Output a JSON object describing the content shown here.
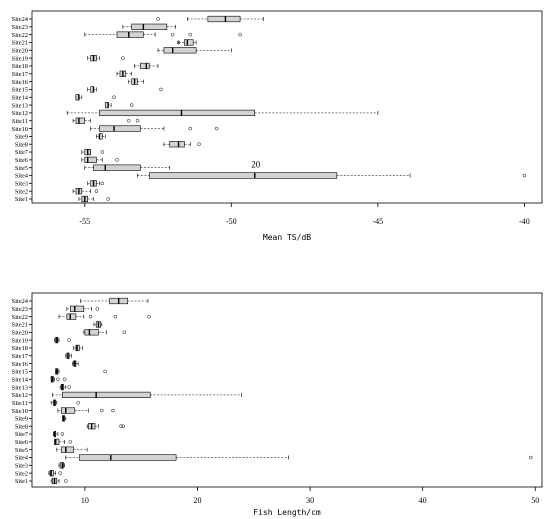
{
  "chart_data": [
    {
      "type": "boxplot",
      "orientation": "horizontal",
      "xlabel": "Mean TS/dB",
      "xlim": [
        -56.8,
        -39.4
      ],
      "xticks": [
        -55,
        -50,
        -45,
        -40
      ],
      "annotation": {
        "text": "20",
        "x": -49.2,
        "y": "Site4"
      },
      "sites": [
        "Site1",
        "Site2",
        "Site3",
        "Site4",
        "Site5",
        "Site6",
        "Site7",
        "Site8",
        "Site9",
        "Site10",
        "Site11",
        "Site12",
        "Site13",
        "Site14",
        "Site15",
        "Site16",
        "Site17",
        "Site18",
        "Site19",
        "Site20",
        "Site21",
        "Site22",
        "Site23",
        "Site24"
      ],
      "boxes": [
        {
          "min": -55.2,
          "q1": -55.1,
          "median": -55.0,
          "q3": -54.9,
          "max": -54.7,
          "outliers": [
            -54.2
          ]
        },
        {
          "min": -55.4,
          "q1": -55.3,
          "median": -55.2,
          "q3": -55.1,
          "max": -54.8,
          "outliers": [
            -54.6
          ]
        },
        {
          "min": -54.9,
          "q1": -54.8,
          "median": -54.7,
          "q3": -54.6,
          "max": -54.5,
          "outliers": [
            -54.4
          ]
        },
        {
          "min": -53.2,
          "q1": -52.8,
          "median": -49.2,
          "q3": -46.4,
          "max": -43.9,
          "outliers": [
            -40.0
          ]
        },
        {
          "min": -55.0,
          "q1": -54.7,
          "median": -54.3,
          "q3": -53.1,
          "max": -52.1,
          "outliers": []
        },
        {
          "min": -55.1,
          "q1": -55.0,
          "median": -54.9,
          "q3": -54.6,
          "max": -54.4,
          "outliers": [
            -53.9
          ]
        },
        {
          "min": -55.1,
          "q1": -55.0,
          "median": -54.9,
          "q3": -54.8,
          "max": -54.8,
          "outliers": [
            -54.4
          ]
        },
        {
          "min": -52.3,
          "q1": -52.1,
          "median": -51.8,
          "q3": -51.6,
          "max": -51.4,
          "outliers": [
            -51.1
          ]
        },
        {
          "min": -54.6,
          "q1": -54.5,
          "median": -54.5,
          "q3": -54.4,
          "max": -54.3,
          "outliers": []
        },
        {
          "min": -54.8,
          "q1": -54.5,
          "median": -54.0,
          "q3": -53.1,
          "max": -52.3,
          "outliers": [
            -51.4,
            -50.5
          ]
        },
        {
          "min": -55.4,
          "q1": -55.3,
          "median": -55.2,
          "q3": -55.0,
          "max": -54.8,
          "outliers": [
            -53.5,
            -53.2
          ]
        },
        {
          "min": -55.6,
          "q1": -54.5,
          "median": -51.7,
          "q3": -49.2,
          "max": -45.0,
          "outliers": []
        },
        {
          "min": -54.3,
          "q1": -54.3,
          "median": -54.2,
          "q3": -54.2,
          "max": -54.1,
          "outliers": [
            -53.4
          ]
        },
        {
          "min": -55.3,
          "q1": -55.3,
          "median": -55.2,
          "q3": -55.2,
          "max": -55.1,
          "outliers": [
            -54.0
          ]
        },
        {
          "min": -54.9,
          "q1": -54.8,
          "median": -54.7,
          "q3": -54.7,
          "max": -54.6,
          "outliers": [
            -52.4
          ]
        },
        {
          "min": -53.5,
          "q1": -53.4,
          "median": -53.3,
          "q3": -53.2,
          "max": -53.0,
          "outliers": []
        },
        {
          "min": -53.9,
          "q1": -53.8,
          "median": -53.7,
          "q3": -53.6,
          "max": -53.4,
          "outliers": []
        },
        {
          "min": -53.3,
          "q1": -53.1,
          "median": -52.9,
          "q3": -52.8,
          "max": -52.5,
          "outliers": []
        },
        {
          "min": -54.9,
          "q1": -54.8,
          "median": -54.7,
          "q3": -54.6,
          "max": -54.5,
          "outliers": [
            -53.7
          ]
        },
        {
          "min": -52.5,
          "q1": -52.3,
          "median": -52.0,
          "q3": -51.2,
          "max": -50.0,
          "outliers": []
        },
        {
          "min": -51.8,
          "q1": -51.6,
          "median": -51.5,
          "q3": -51.3,
          "max": -51.2,
          "outliers": [
            -51.8
          ]
        },
        {
          "min": -55.0,
          "q1": -53.9,
          "median": -53.5,
          "q3": -53.0,
          "max": -52.6,
          "outliers": [
            -52.0,
            -51.4,
            -49.7
          ]
        },
        {
          "min": -53.7,
          "q1": -53.4,
          "median": -53.0,
          "q3": -52.2,
          "max": -51.9,
          "outliers": []
        },
        {
          "min": -51.5,
          "q1": -50.8,
          "median": -50.2,
          "q3": -49.7,
          "max": -48.9,
          "outliers": [
            -52.5
          ]
        }
      ]
    },
    {
      "type": "boxplot",
      "orientation": "horizontal",
      "xlabel": "Fish Length/cm",
      "xlim": [
        5.3,
        50.6
      ],
      "xticks": [
        10,
        20,
        30,
        40,
        50
      ],
      "sites": [
        "Site1",
        "Site2",
        "Site3",
        "Site4",
        "Site5",
        "Site6",
        "Site7",
        "Site8",
        "Site9",
        "Site10",
        "Site11",
        "Site12",
        "Site13",
        "Site14",
        "Site15",
        "Site16",
        "Site17",
        "Site18",
        "Site19",
        "Site20",
        "Site21",
        "Site22",
        "Site23",
        "Site24"
      ],
      "boxes": [
        {
          "min": 7.0,
          "q1": 7.1,
          "median": 7.3,
          "q3": 7.5,
          "max": 7.7,
          "outliers": [
            8.3
          ]
        },
        {
          "min": 6.8,
          "q1": 6.9,
          "median": 7.0,
          "q3": 7.2,
          "max": 7.4,
          "outliers": [
            7.8
          ]
        },
        {
          "min": 7.7,
          "q1": 7.8,
          "median": 8.0,
          "q3": 8.1,
          "max": 8.2,
          "outliers": []
        },
        {
          "min": 8.3,
          "q1": 9.5,
          "median": 12.3,
          "q3": 18.1,
          "max": 28.1,
          "outliers": [
            49.6
          ]
        },
        {
          "min": 7.5,
          "q1": 7.9,
          "median": 8.3,
          "q3": 9.0,
          "max": 10.2,
          "outliers": []
        },
        {
          "min": 7.3,
          "q1": 7.3,
          "median": 7.4,
          "q3": 7.7,
          "max": 8.2,
          "outliers": [
            8.7
          ]
        },
        {
          "min": 7.2,
          "q1": 7.3,
          "median": 7.3,
          "q3": 7.4,
          "max": 7.6,
          "outliers": [
            8.0
          ]
        },
        {
          "min": 10.2,
          "q1": 10.3,
          "median": 10.6,
          "q3": 10.9,
          "max": 11.2,
          "outliers": [
            13.2,
            13.4
          ]
        },
        {
          "min": 8.0,
          "q1": 8.0,
          "median": 8.1,
          "q3": 8.2,
          "max": 8.3,
          "outliers": []
        },
        {
          "min": 7.6,
          "q1": 7.9,
          "median": 8.3,
          "q3": 9.1,
          "max": 10.3,
          "outliers": [
            11.5,
            12.5
          ]
        },
        {
          "min": 7.0,
          "q1": 7.2,
          "median": 7.3,
          "q3": 7.4,
          "max": 7.5,
          "outliers": [
            9.4
          ]
        },
        {
          "min": 7.1,
          "q1": 8.0,
          "median": 11.0,
          "q3": 15.8,
          "max": 23.9,
          "outliers": []
        },
        {
          "min": 7.8,
          "q1": 7.9,
          "median": 8.0,
          "q3": 8.1,
          "max": 8.3,
          "outliers": [
            8.6
          ]
        },
        {
          "min": 7.0,
          "q1": 7.0,
          "median": 7.1,
          "q3": 7.2,
          "max": 7.3,
          "outliers": [
            7.6,
            8.2
          ]
        },
        {
          "min": 7.4,
          "q1": 7.4,
          "median": 7.5,
          "q3": 7.6,
          "max": 7.7,
          "outliers": [
            11.8
          ]
        },
        {
          "min": 8.9,
          "q1": 9.0,
          "median": 9.1,
          "q3": 9.2,
          "max": 9.4,
          "outliers": []
        },
        {
          "min": 8.3,
          "q1": 8.4,
          "median": 8.5,
          "q3": 8.6,
          "max": 8.8,
          "outliers": []
        },
        {
          "min": 9.0,
          "q1": 9.2,
          "median": 9.3,
          "q3": 9.5,
          "max": 9.8,
          "outliers": []
        },
        {
          "min": 7.3,
          "q1": 7.4,
          "median": 7.5,
          "q3": 7.6,
          "max": 7.7,
          "outliers": [
            8.6
          ]
        },
        {
          "min": 9.9,
          "q1": 10.0,
          "median": 10.4,
          "q3": 11.2,
          "max": 11.9,
          "outliers": [
            13.5
          ]
        },
        {
          "min": 10.8,
          "q1": 11.0,
          "median": 11.2,
          "q3": 11.4,
          "max": 11.5,
          "outliers": []
        },
        {
          "min": 7.7,
          "q1": 8.4,
          "median": 8.7,
          "q3": 9.2,
          "max": 9.9,
          "outliers": [
            10.5,
            12.7,
            15.7
          ]
        },
        {
          "min": 8.4,
          "q1": 8.7,
          "median": 9.1,
          "q3": 9.9,
          "max": 10.6,
          "outliers": [
            11.1
          ]
        },
        {
          "min": 9.6,
          "q1": 12.2,
          "median": 13.0,
          "q3": 13.8,
          "max": 15.6,
          "outliers": []
        }
      ]
    }
  ]
}
